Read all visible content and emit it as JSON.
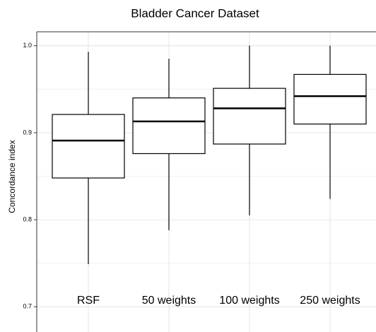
{
  "chart_data": {
    "type": "box",
    "title": "Bladder Cancer Dataset",
    "y_label": "Concordance index",
    "categories": [
      "RSF",
      "50 weights",
      "100 weights",
      "250 weights"
    ],
    "boxes": [
      {
        "min": 0.749,
        "q1": 0.848,
        "median": 0.891,
        "q3": 0.921,
        "max": 0.993
      },
      {
        "min": 0.788,
        "q1": 0.876,
        "median": 0.913,
        "q3": 0.94,
        "max": 0.985
      },
      {
        "min": 0.805,
        "q1": 0.887,
        "median": 0.928,
        "q3": 0.951,
        "max": 1.0
      },
      {
        "min": 0.824,
        "q1": 0.91,
        "median": 0.942,
        "q3": 0.967,
        "max": 1.0
      }
    ],
    "ylim": [
      0.671,
      1.016
    ],
    "yticks": [
      0.7,
      0.8,
      0.9,
      {
        "value": 1,
        "label": "1.0"
      }
    ],
    "grid": true
  }
}
